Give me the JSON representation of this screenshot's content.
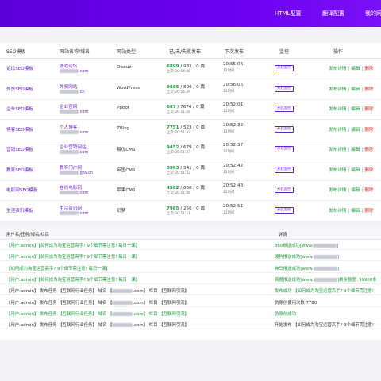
{
  "nav": {
    "items": [
      "HTML配置",
      "翻译配置",
      "我的网"
    ]
  },
  "table": {
    "headers": [
      "SEO模板",
      "网站名称/域名",
      "网站类型",
      "已/未/失败发布",
      "下次发布",
      "监控",
      "操作"
    ],
    "rows": [
      {
        "template": "论坛SEO模板",
        "name": "游戏论坛",
        "domain_suffix": ".com",
        "type": "Discuz",
        "counts": "982 / 0 篇",
        "published": "6899",
        "next_time": "20:55:06",
        "next_sub": "12时间",
        "last": "上次:20:54:06",
        "monitor": "开启监控"
      },
      {
        "template": "外贸SEO模板",
        "name": "外贸网站",
        "domain_suffix": ".cn",
        "type": "WordPress",
        "counts": "899 / 0 篇",
        "published": "9885",
        "next_time": "20:56:06",
        "next_sub": "12时间",
        "last": "上次:20:54:29",
        "monitor": "开启监控"
      },
      {
        "template": "企业SEO模板",
        "name": "企业官网",
        "domain_suffix": ".com",
        "type": "Pboot",
        "counts": "7674 / 0 篇",
        "published": "687",
        "next_time": "20:52:01",
        "next_sub": "12时间",
        "last": "上次:20:51:28",
        "monitor": "开启监控"
      },
      {
        "template": "博客SEO模板",
        "name": "个人博客",
        "domain_suffix": ".com",
        "type": "ZBlog",
        "counts": "523 / 0 篇",
        "published": "7751",
        "next_time": "20:52:32",
        "next_sub": "12时间",
        "last": "上次:20:51:32",
        "monitor": "开启监控"
      },
      {
        "template": "营销SEO模板",
        "name": "企业营销网站",
        "domain_suffix": ".com",
        "type": "易优CMS",
        "counts": "679 / 0 篇",
        "published": "9452",
        "next_time": "20:52:37",
        "next_sub": "12时间",
        "last": "上次:20:51:37",
        "monitor": "开启监控"
      },
      {
        "template": "教育SEO模板",
        "name": "教育门户网",
        "domain_suffix": ".gov.cn",
        "type": "帝国CMS",
        "counts": "541 / 0 篇",
        "published": "5583",
        "next_time": "20:52:42",
        "next_sub": "12时间",
        "last": "上次:20:51:42",
        "monitor": "开启监控"
      },
      {
        "template": "电影网SEO模板",
        "name": "在线电影网",
        "domain_suffix": ".com",
        "type": "苹果CMS",
        "counts": "658 / 0 篇",
        "published": "4582",
        "next_time": "20:52:48",
        "next_sub": "12时间",
        "last": "上次:20:51:48",
        "monitor": "开启监控"
      },
      {
        "template": "生活资讯模板",
        "name": "生活资讯网",
        "domain_suffix": ".com",
        "type": "织梦",
        "counts": "256 / 0 篇",
        "published": "7985",
        "next_time": "20:52:51",
        "next_sub": "12时间",
        "last": "上次:20:51:51",
        "monitor": "开启监控"
      }
    ],
    "actions": {
      "detail": "发布详情",
      "edit": "编辑",
      "delete": "删除"
    }
  },
  "logs": {
    "headers": [
      "用户名/任务/域名/栏目",
      "详情"
    ],
    "rows": [
      {
        "text": "【用户:admin】【如何成为淘宝运营高手? 9个细节需注意! 每日一课】",
        "style": "lg",
        "detail": "360推送成功[www.",
        "detail_end": "]",
        "detail_style": "lg"
      },
      {
        "text": "【用户:admin】【如何成为淘宝运营高手? 9个细节需注意! 每日一课】",
        "style": "lg",
        "detail": "搜狗推送成功[www.",
        "detail_end": "]",
        "detail_style": "lg"
      },
      {
        "text": "【如何成为淘宝运营高手? 9个细节需注意! 每日一课】",
        "style": "lg",
        "detail": "神马推送成功[www.",
        "detail_end": "]",
        "detail_style": "lg"
      },
      {
        "text": "【用户:admin】【如何成为淘宝运营高手? 9个细节需注意! 每日一课】",
        "style": "lg",
        "detail": "百度推送成功[www.",
        "detail_end": "]剩余额度: 99960条",
        "detail_style": "lg"
      },
      {
        "text": "【用户:admin】 发布任务 【互联网行业任务】 域名 【",
        "text_end": ".com】 栏目 【互联网引流】",
        "style": "lk",
        "detail": "发布成功 【如何成为淘宝运营高手? 9个细节需注意!",
        "detail_style": "lg"
      },
      {
        "text": "【用户:admin】 发布任务 【互联网行业任务】 域名 【",
        "text_end": ".com】 栏目 【互联网引流】",
        "style": "lk",
        "detail": "伪原创使用次数 7780",
        "detail_style": "lk"
      },
      {
        "text": "【用户:admin】 发布任务 【互联网行业任务】 域名 【",
        "text_end": ".com】 栏目 【互联网引流】",
        "style": "lg",
        "detail": "伪原创成功",
        "detail_style": "lg"
      },
      {
        "text": "【用户:admin】 发布任务 【互联网行业任务】 域名 【",
        "text_end": ".com】 栏目 【互联网引流】",
        "style": "lk",
        "detail": "开始发布 【如何成为淘宝运营高手? 9个细节需注意!",
        "detail_style": "lk"
      }
    ]
  },
  "colors": {
    "header": "#6c00f0",
    "accent": "#6a1fd1",
    "green": "#1a9e3a",
    "red": "#e0332f"
  }
}
